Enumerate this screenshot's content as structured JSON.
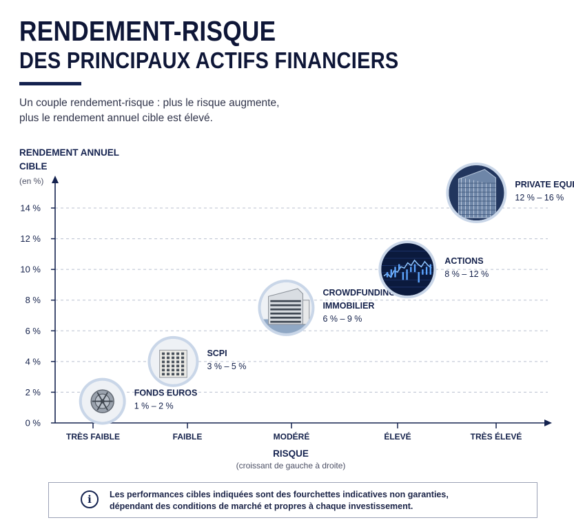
{
  "header": {
    "title_line1": "RENDEMENT-RISQUE",
    "title_line2": "DES PRINCIPAUX ACTIFS FINANCIERS",
    "subtitle_line1": "Un couple rendement-risque : plus le risque augmente,",
    "subtitle_line2": "plus le rendement annuel cible est élevé."
  },
  "note": {
    "icon": "info-icon",
    "line1": "Les performances cibles indiquées sont des fourchettes indicatives non garanties,",
    "line2": "dépendant des conditions de marché et propres à chaque investissement."
  },
  "colors": {
    "navy": "#14224f",
    "circle_fill": "#c9d6e8",
    "axis": "#14224f"
  },
  "chart_data": {
    "type": "scatter",
    "ylabel_line1": "RENDEMENT ANNUEL",
    "ylabel_line2": "CIBLE",
    "yunit": "(en %)",
    "xlabel": "RISQUE",
    "xsublabel": "(croissant de gauche à droite)",
    "categories": [
      "TRÈS FAIBLE",
      "FAIBLE",
      "MODÉRÉ",
      "ÉLEVÉ",
      "TRÈS ÉLEVÉ"
    ],
    "y_ticks": [
      "0 %",
      "2 %",
      "4 %",
      "6 %",
      "8 %",
      "10 %",
      "12 %",
      "14 %"
    ],
    "ylim": [
      0,
      14
    ],
    "grid": true,
    "points": [
      {
        "name_lines": [
          "FONDS EUROS"
        ],
        "range": "1 % – 2 %",
        "risk": 0.1,
        "low": 1,
        "high": 2,
        "icon": "vault-icon"
      },
      {
        "name_lines": [
          "SCPI"
        ],
        "range": "3 % – 5 %",
        "risk": 0.85,
        "low": 3,
        "high": 5,
        "icon": "building-icon"
      },
      {
        "name_lines": [
          "CROWDFUNDING",
          "IMMOBILIER"
        ],
        "range": "6 % – 9 %",
        "risk": 1.95,
        "low": 6,
        "high": 9,
        "icon": "office-building-icon"
      },
      {
        "name_lines": [
          "ACTIONS"
        ],
        "range": "8 % – 12 %",
        "risk": 3.1,
        "low": 8,
        "high": 12,
        "icon": "stock-chart-icon"
      },
      {
        "name_lines": [
          "PRIVATE EQUITY"
        ],
        "range": "12 % – 16 %",
        "risk": 3.8,
        "low": 12,
        "high": 16,
        "icon": "skyscraper-icon"
      }
    ]
  }
}
